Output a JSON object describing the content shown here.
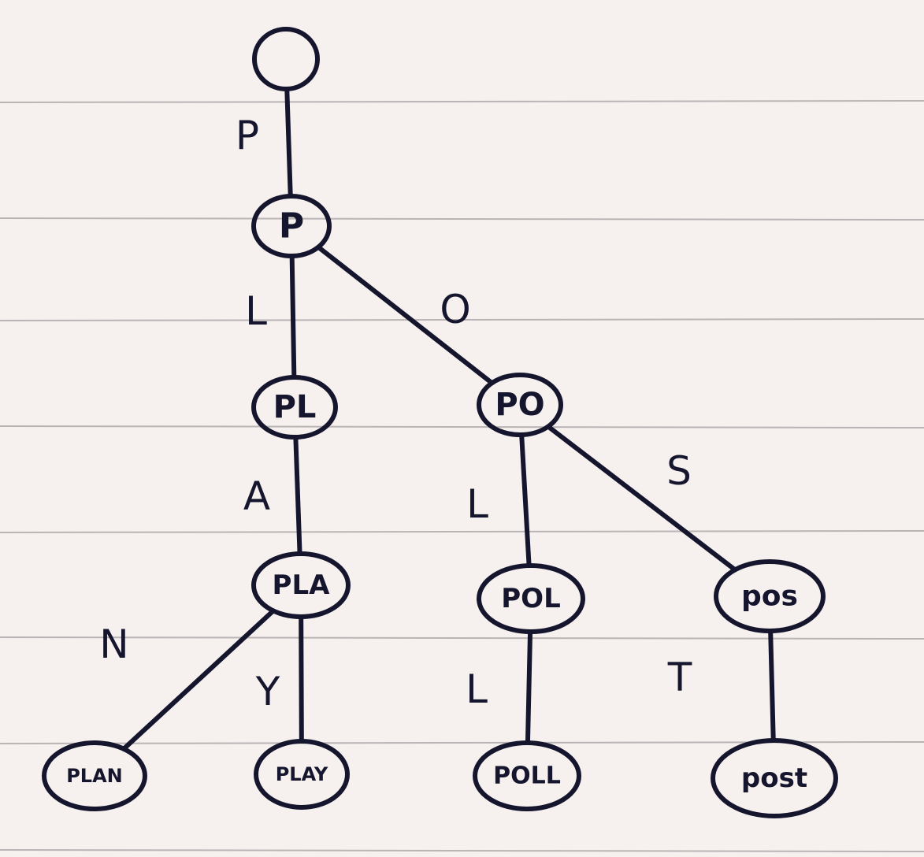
{
  "diagram": {
    "nodes": [
      {
        "id": "root",
        "label": ""
      },
      {
        "id": "p",
        "label": "P"
      },
      {
        "id": "pl",
        "label": "PL"
      },
      {
        "id": "po",
        "label": "PO"
      },
      {
        "id": "pla",
        "label": "PLA"
      },
      {
        "id": "pol",
        "label": "POL"
      },
      {
        "id": "pos",
        "label": "pos"
      },
      {
        "id": "plan",
        "label": "PLAN"
      },
      {
        "id": "play",
        "label": "PLAY"
      },
      {
        "id": "poll",
        "label": "POLL"
      },
      {
        "id": "post",
        "label": "post"
      }
    ],
    "edges": [
      {
        "from": "root",
        "to": "p",
        "label": "P"
      },
      {
        "from": "p",
        "to": "pl",
        "label": "L"
      },
      {
        "from": "p",
        "to": "po",
        "label": "O"
      },
      {
        "from": "pl",
        "to": "pla",
        "label": "A"
      },
      {
        "from": "po",
        "to": "pol",
        "label": "L"
      },
      {
        "from": "po",
        "to": "pos",
        "label": "S"
      },
      {
        "from": "pla",
        "to": "plan",
        "label": "N"
      },
      {
        "from": "pla",
        "to": "play",
        "label": "Y"
      },
      {
        "from": "pol",
        "to": "poll",
        "label": "L"
      },
      {
        "from": "pos",
        "to": "post",
        "label": "T"
      }
    ]
  }
}
